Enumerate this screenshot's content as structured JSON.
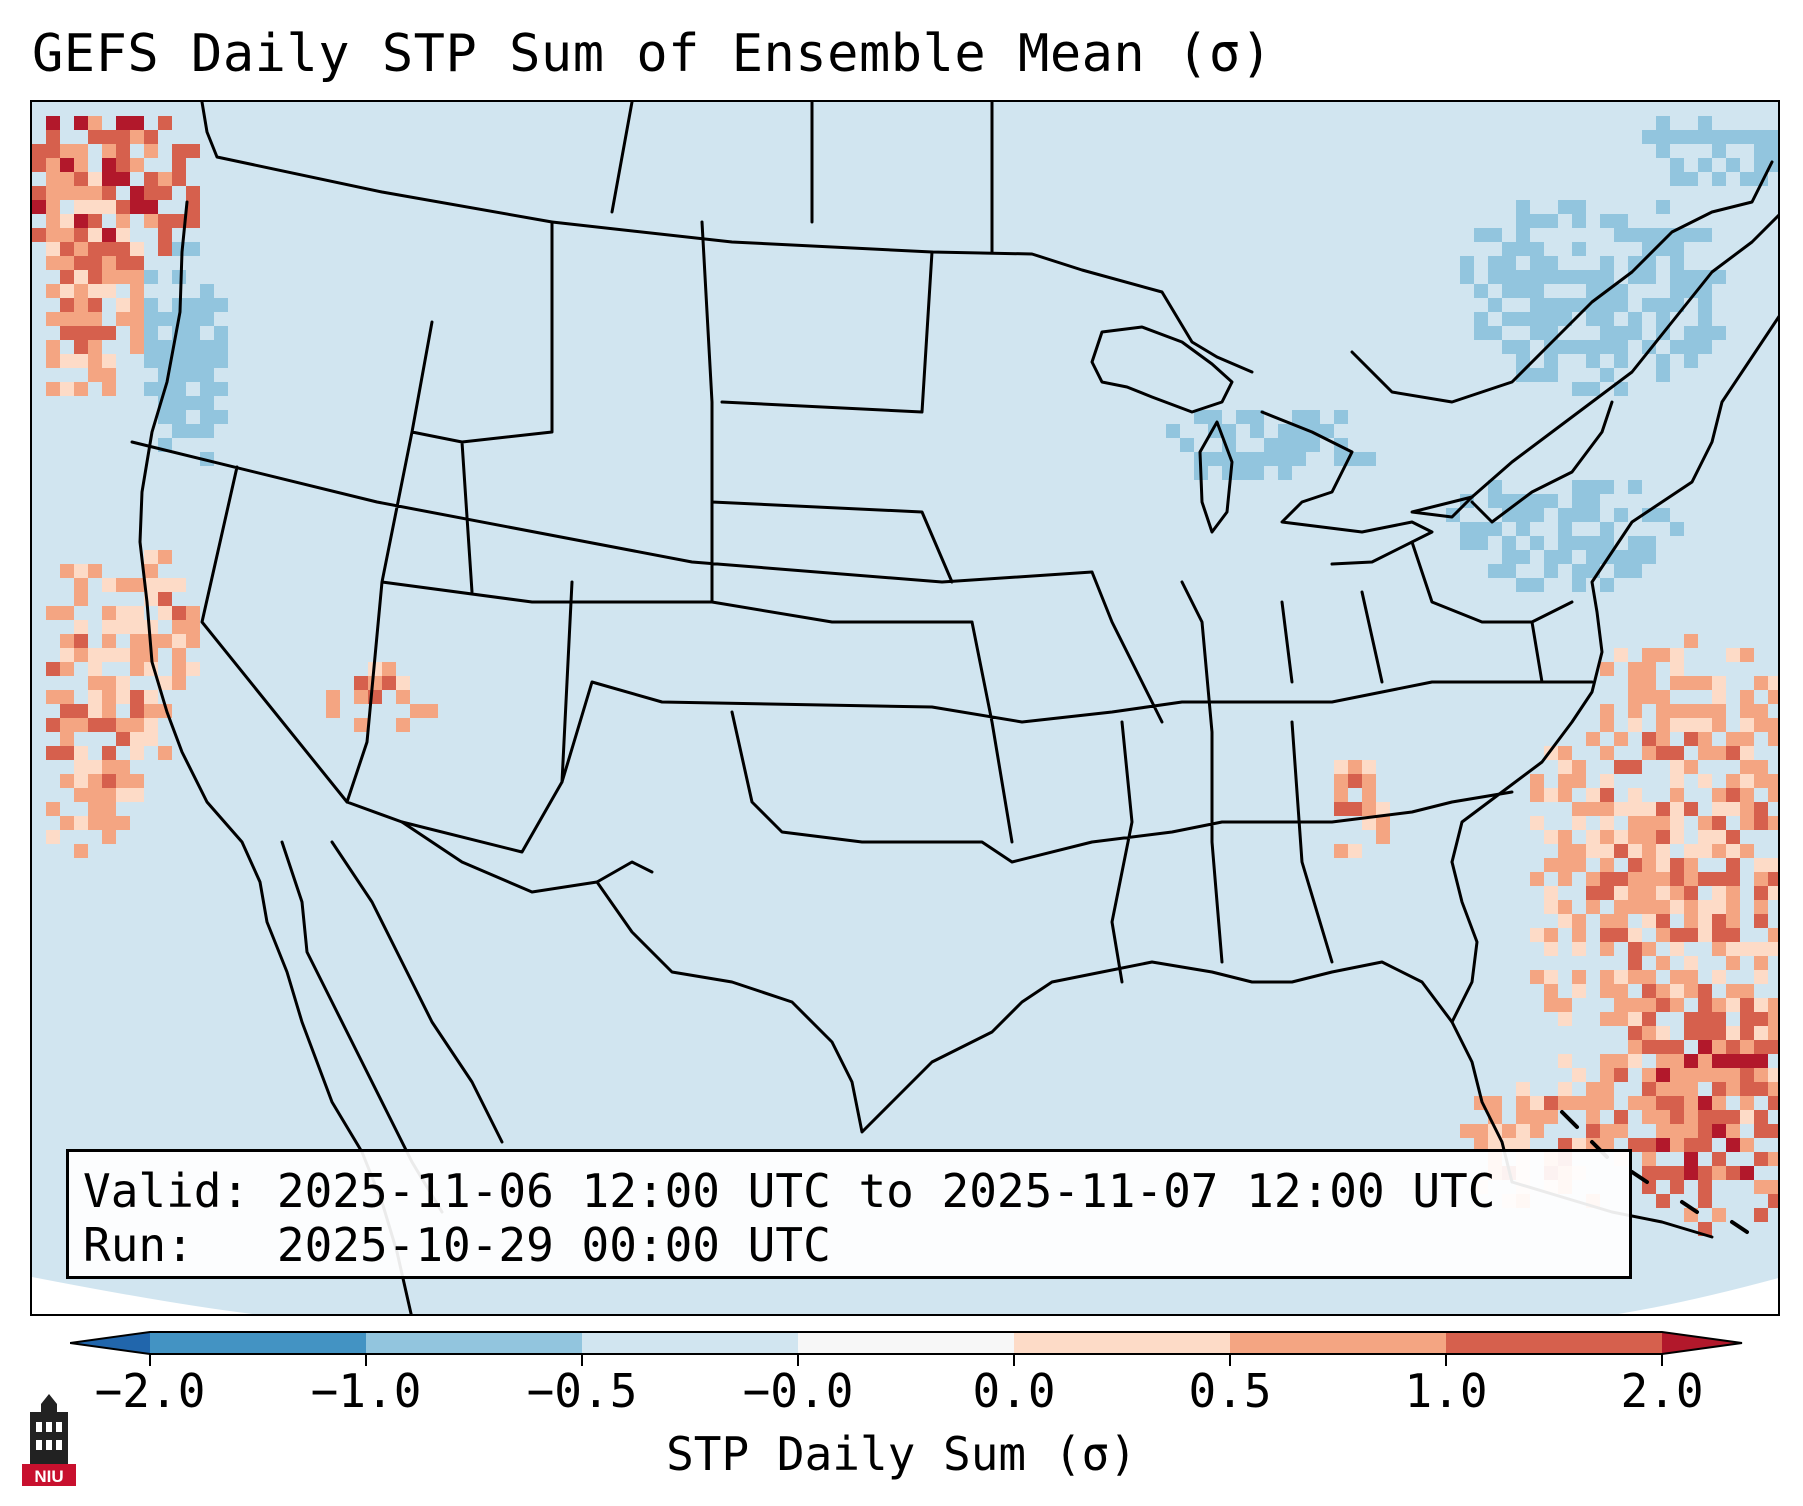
{
  "title": "GEFS Daily STP Sum of Ensemble Mean (σ)",
  "info": {
    "valid_label": "Valid:",
    "valid_value": "2025-11-06 12:00 UTC to 2025-11-07 12:00 UTC",
    "run_label": "Run:",
    "run_value": "2025-10-29 00:00 UTC"
  },
  "colorbar": {
    "label": "STP Daily Sum (σ)",
    "ticks": [
      "−2.0",
      "−1.0",
      "−0.5",
      "−0.0",
      "0.0",
      "0.5",
      "1.0",
      "2.0"
    ],
    "bin_colors": [
      "#4393c3",
      "#92c5de",
      "#d1e5f0",
      "#f7f7f7",
      "#fddbc7",
      "#f4a582",
      "#d6604d"
    ],
    "under_color": "#2166ac",
    "over_color": "#b2182b"
  },
  "logo": {
    "text": "NIU",
    "icon": "university-tower-icon"
  },
  "map": {
    "background_color": "#d1e5f0",
    "regions": [
      {
        "name": "north-pacific-coast",
        "level": 1.0
      },
      {
        "name": "california-coast",
        "level": 0.5
      },
      {
        "name": "gulf-stream-atlantic",
        "level": 0.5
      },
      {
        "name": "bahamas-atlantic",
        "level": 1.0
      },
      {
        "name": "great-lakes",
        "level": -0.5
      },
      {
        "name": "quebec-maine",
        "level": -0.5
      }
    ]
  }
}
